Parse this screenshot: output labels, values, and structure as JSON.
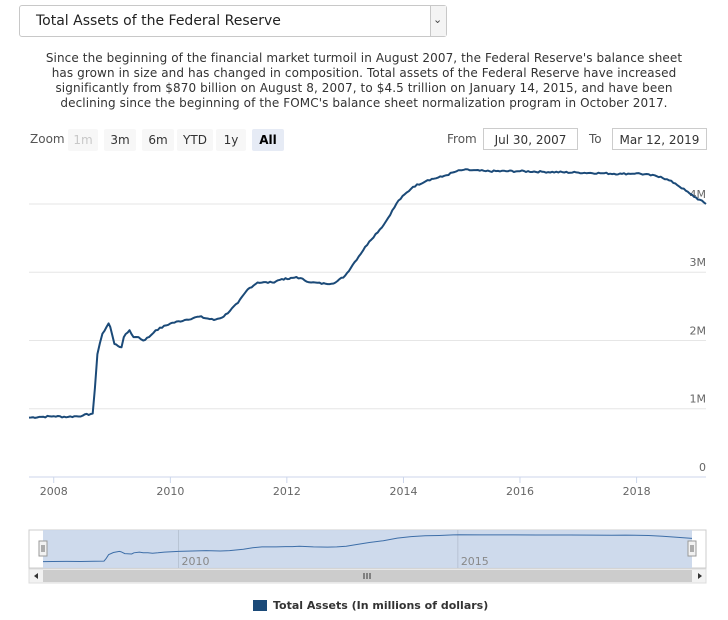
{
  "dropdown": {
    "selected": "Total Assets of the Federal Reserve",
    "chevron": "chevron-down-icon"
  },
  "description": "Since the beginning of the financial market turmoil in August 2007, the Federal Reserve's balance sheet has grown in size and has changed in composition. Total assets of the Federal Reserve have increased significantly from $870 billion on August 8, 2007, to $4.5 trillion on January 14, 2015, and have been declining since the beginning of the FOMC's balance sheet normalization program in October 2017.",
  "zoom": {
    "label": "Zoom",
    "buttons": [
      {
        "label": "1m",
        "state": "disabled"
      },
      {
        "label": "3m",
        "state": "normal"
      },
      {
        "label": "6m",
        "state": "normal"
      },
      {
        "label": "YTD",
        "state": "normal"
      },
      {
        "label": "1y",
        "state": "normal"
      },
      {
        "label": "All",
        "state": "active"
      }
    ]
  },
  "range": {
    "from_label": "From",
    "from_value": "Jul 30, 2007",
    "to_label": "To",
    "to_value": "Mar 12, 2019"
  },
  "legend": {
    "label": "Total Assets (In millions of dollars)"
  },
  "colors": {
    "series": "#1b4a78",
    "navigator_fill": "#c9d6ea",
    "navigator_line": "#3d6ea8"
  },
  "chart_data": {
    "type": "line",
    "title": "",
    "xlabel": "",
    "ylabel": "",
    "x_ticks": [
      "2008",
      "2010",
      "2012",
      "2014",
      "2016",
      "2018"
    ],
    "y_ticks": [
      "0",
      "1M",
      "2M",
      "3M",
      "4M"
    ],
    "ylim": [
      0,
      4600000
    ],
    "xlim": [
      "2007-07-30",
      "2019-03-12"
    ],
    "grid": true,
    "navigator_ticks": [
      "2010",
      "2015"
    ],
    "series": [
      {
        "name": "Total Assets",
        "unit": "millions of dollars",
        "x": [
          "2007-07-30",
          "2007-10-01",
          "2008-01-01",
          "2008-04-01",
          "2008-07-01",
          "2008-09-01",
          "2008-09-15",
          "2008-10-01",
          "2008-11-01",
          "2008-12-10",
          "2008-12-20",
          "2009-01-15",
          "2009-03-01",
          "2009-03-15",
          "2009-04-20",
          "2009-05-15",
          "2009-06-15",
          "2009-07-15",
          "2009-08-20",
          "2009-10-01",
          "2010-01-01",
          "2010-04-01",
          "2010-07-01",
          "2010-10-01",
          "2010-12-01",
          "2011-03-01",
          "2011-05-01",
          "2011-07-01",
          "2011-10-01",
          "2011-12-01",
          "2012-01-15",
          "2012-03-01",
          "2012-06-01",
          "2012-09-01",
          "2012-11-01",
          "2013-01-01",
          "2013-03-01",
          "2013-06-01",
          "2013-09-01",
          "2013-12-01",
          "2014-03-01",
          "2014-06-01",
          "2014-09-01",
          "2014-12-01",
          "2015-01-14",
          "2015-06-01",
          "2016-01-01",
          "2016-06-01",
          "2017-01-01",
          "2017-06-01",
          "2017-10-01",
          "2018-01-01",
          "2018-06-01",
          "2018-09-01",
          "2018-12-01",
          "2019-03-12"
        ],
        "y": [
          870000,
          880000,
          890000,
          880000,
          900000,
          930000,
          1300000,
          1800000,
          2100000,
          2250000,
          2200000,
          1950000,
          1900000,
          2050000,
          2150000,
          2050000,
          2050000,
          2000000,
          2050000,
          2150000,
          2250000,
          2300000,
          2350000,
          2300000,
          2350000,
          2550000,
          2750000,
          2850000,
          2850000,
          2900000,
          2900000,
          2930000,
          2850000,
          2830000,
          2850000,
          2950000,
          3150000,
          3450000,
          3700000,
          4050000,
          4250000,
          4350000,
          4400000,
          4480000,
          4500000,
          4480000,
          4480000,
          4470000,
          4460000,
          4450000,
          4440000,
          4450000,
          4400000,
          4300000,
          4150000,
          4000000
        ]
      }
    ]
  }
}
